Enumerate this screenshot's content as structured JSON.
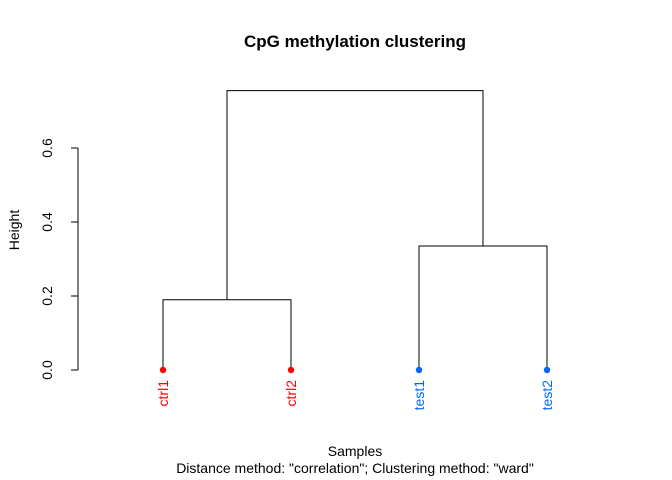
{
  "chart_data": {
    "type": "dendrogram",
    "title": "CpG methylation clustering",
    "xlabel": "Samples",
    "sublabel": "Distance method: \"correlation\"; Clustering method: \"ward\"",
    "ylabel": "Height",
    "ylim": [
      0,
      0.6
    ],
    "yticks": [
      "0.0",
      "0.2",
      "0.4",
      "0.6"
    ],
    "leaves": [
      {
        "label": "ctrl1",
        "color": "#ff0000"
      },
      {
        "label": "ctrl2",
        "color": "#ff0000"
      },
      {
        "label": "test1",
        "color": "#0066ff"
      },
      {
        "label": "test2",
        "color": "#0066ff"
      }
    ],
    "merges": [
      {
        "left": "ctrl1",
        "right": "ctrl2",
        "height": 0.19
      },
      {
        "left": "test1",
        "right": "test2",
        "height": 0.335
      },
      {
        "left": "ctrl1+ctrl2",
        "right": "test1+test2",
        "height": 0.755
      }
    ]
  }
}
